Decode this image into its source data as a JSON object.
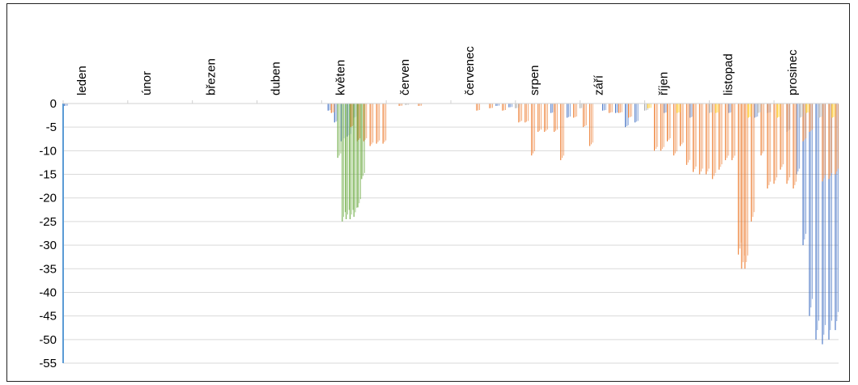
{
  "chart_data": {
    "type": "bar",
    "title": "",
    "xlabel": "",
    "ylabel": "",
    "ylim": [
      -55,
      0
    ],
    "yticks": [
      0,
      -5,
      -10,
      -15,
      -20,
      -25,
      -30,
      -35,
      -40,
      -45,
      -50,
      -55
    ],
    "ytick_labels": [
      "0",
      "-5",
      "-10",
      "-15",
      "-20",
      "-25",
      "-30",
      "-35",
      "-40",
      "-45",
      "-50",
      "-55"
    ],
    "x_axis_position": "top",
    "grid": true,
    "legend": "none",
    "categories": [
      "leden",
      "únor",
      "březen",
      "duben",
      "květen",
      "červen",
      "červenec",
      "srpen",
      "září",
      "říjen",
      "listopad",
      "prosinec"
    ],
    "colors": {
      "blue": "#4472C4",
      "orange": "#ED7D31",
      "green": "#70AD47",
      "gray": "#A5A5A5",
      "gold": "#FFC000",
      "grid": "#d9d9d9",
      "axis": "#5b9bd5"
    },
    "series": [
      {
        "color": "blue",
        "points": [
          [
            0.02,
            -0.5
          ],
          [
            4.1,
            -1.5
          ],
          [
            4.2,
            -4
          ],
          [
            4.3,
            -8
          ],
          [
            4.4,
            -7
          ],
          [
            4.5,
            -3
          ],
          [
            6.7,
            -0.5
          ],
          [
            6.9,
            -0.8
          ],
          [
            7.55,
            -2
          ],
          [
            7.8,
            -3
          ],
          [
            8.35,
            -1.5
          ],
          [
            8.55,
            -2
          ],
          [
            8.7,
            -5
          ],
          [
            8.85,
            -4
          ],
          [
            9.3,
            -2
          ],
          [
            9.7,
            -3
          ],
          [
            10.3,
            -2
          ],
          [
            10.7,
            -3
          ],
          [
            10.9,
            -2
          ],
          [
            11.2,
            -6
          ],
          [
            11.35,
            -15
          ],
          [
            11.45,
            -30
          ],
          [
            11.55,
            -45
          ],
          [
            11.65,
            -50
          ],
          [
            11.75,
            -51
          ],
          [
            11.85,
            -50
          ],
          [
            11.95,
            -48
          ]
        ]
      },
      {
        "color": "orange",
        "points": [
          [
            4.15,
            -2
          ],
          [
            4.45,
            -5
          ],
          [
            4.55,
            -8
          ],
          [
            4.65,
            -8
          ],
          [
            4.75,
            -9
          ],
          [
            4.85,
            -8.5
          ],
          [
            4.95,
            -8.5
          ],
          [
            5.2,
            -0.5
          ],
          [
            5.5,
            -0.5
          ],
          [
            6.4,
            -1.5
          ],
          [
            6.6,
            -1
          ],
          [
            6.8,
            -1.5
          ],
          [
            7.05,
            -4
          ],
          [
            7.15,
            -4
          ],
          [
            7.25,
            -11
          ],
          [
            7.35,
            -6
          ],
          [
            7.45,
            -6
          ],
          [
            7.6,
            -6
          ],
          [
            7.7,
            -12
          ],
          [
            7.9,
            -3
          ],
          [
            8.05,
            -5
          ],
          [
            8.15,
            -9
          ],
          [
            8.45,
            -2
          ],
          [
            8.6,
            -2
          ],
          [
            8.75,
            -3
          ],
          [
            9.15,
            -10
          ],
          [
            9.25,
            -10
          ],
          [
            9.35,
            -8
          ],
          [
            9.45,
            -11
          ],
          [
            9.55,
            -9
          ],
          [
            9.65,
            -13
          ],
          [
            9.75,
            -14.5
          ],
          [
            9.85,
            -15
          ],
          [
            9.95,
            -15
          ],
          [
            10.05,
            -16
          ],
          [
            10.15,
            -14
          ],
          [
            10.25,
            -12
          ],
          [
            10.35,
            -12
          ],
          [
            10.45,
            -32
          ],
          [
            10.5,
            -35
          ],
          [
            10.55,
            -35
          ],
          [
            10.65,
            -25
          ],
          [
            10.8,
            -11
          ],
          [
            10.9,
            -18
          ],
          [
            11.0,
            -17
          ],
          [
            11.1,
            -14
          ],
          [
            11.2,
            -17
          ],
          [
            11.3,
            -18
          ],
          [
            11.45,
            -8
          ],
          [
            11.55,
            -6
          ],
          [
            11.75,
            -16.5
          ],
          [
            11.85,
            -16
          ],
          [
            11.95,
            -15
          ]
        ]
      },
      {
        "color": "green",
        "points": [
          [
            4.25,
            -11.5
          ],
          [
            4.32,
            -25
          ],
          [
            4.38,
            -24.5
          ],
          [
            4.44,
            -24.5
          ],
          [
            4.5,
            -24
          ],
          [
            4.56,
            -22
          ],
          [
            4.62,
            -16
          ]
        ]
      },
      {
        "color": "gray",
        "points": [
          [
            5.3,
            -0.3
          ],
          [
            7.0,
            -1
          ],
          [
            8.0,
            -1
          ],
          [
            9.0,
            -1.5
          ],
          [
            10.0,
            -2
          ],
          [
            10.75,
            -2
          ],
          [
            11.4,
            -3
          ],
          [
            11.7,
            -3
          ]
        ]
      },
      {
        "color": "gold",
        "points": [
          [
            9.05,
            -1
          ],
          [
            9.5,
            -2
          ],
          [
            10.1,
            -2
          ],
          [
            10.6,
            -3
          ],
          [
            11.05,
            -3
          ],
          [
            11.5,
            -2
          ],
          [
            11.9,
            -3
          ]
        ]
      }
    ]
  }
}
